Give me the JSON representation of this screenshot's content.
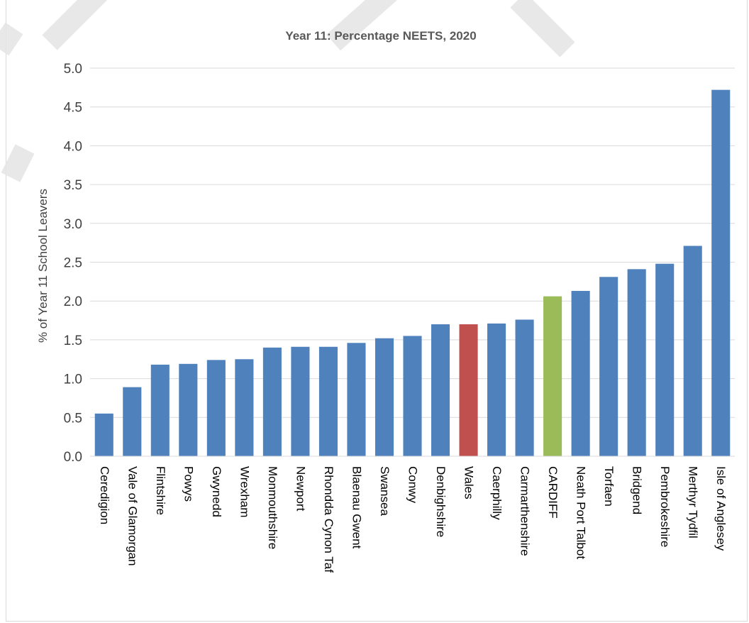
{
  "chart_data": {
    "type": "bar",
    "title": "Year 11: Percentage NEETS, 2020",
    "xlabel": "",
    "ylabel": "% of Year 11 School Leavers",
    "ylim": [
      0,
      5.0
    ],
    "yticks": [
      "0.0",
      "0.5",
      "1.0",
      "1.5",
      "2.0",
      "2.5",
      "3.0",
      "3.5",
      "4.0",
      "4.5",
      "5.0"
    ],
    "grid": true,
    "categories": [
      "Ceredigion",
      "Vale of Glamorgan",
      "Flintshire",
      "Powys",
      "Gwynedd",
      "Wrexham",
      "Monmouthshire",
      "Newport",
      "Rhondda Cynon Taf",
      "Blaenau Gwent",
      "Swansea",
      "Conwy",
      "Denbighshire",
      "Wales",
      "Caerphilly",
      "Carmarthenshire",
      "CARDIFF",
      "Neath Port Talbot",
      "Torfaen",
      "Bridgend",
      "Pembrokeshire",
      "Merthyr Tydfil",
      "Isle of Anglesey"
    ],
    "values": [
      0.55,
      0.89,
      1.18,
      1.19,
      1.24,
      1.25,
      1.4,
      1.41,
      1.41,
      1.46,
      1.52,
      1.55,
      1.7,
      1.7,
      1.71,
      1.76,
      2.06,
      2.13,
      2.31,
      2.41,
      2.48,
      2.71,
      4.72
    ],
    "colors": {
      "default": "#4f81bd",
      "Wales": "#c0504d",
      "CARDIFF": "#9bbb59"
    }
  }
}
